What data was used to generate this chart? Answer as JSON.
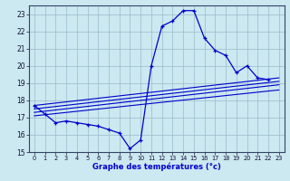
{
  "xlabel": "Graphe des températures (°c)",
  "bg_color": "#cce8f0",
  "grid_color": "#99bbcc",
  "line_color": "#0000cc",
  "xlabel_color": "#0000cc",
  "xlim": [
    -0.5,
    23.5
  ],
  "ylim": [
    15,
    23.5
  ],
  "yticks": [
    15,
    16,
    17,
    18,
    19,
    20,
    21,
    22,
    23
  ],
  "xticks": [
    0,
    1,
    2,
    3,
    4,
    5,
    6,
    7,
    8,
    9,
    10,
    11,
    12,
    13,
    14,
    15,
    16,
    17,
    18,
    19,
    20,
    21,
    22,
    23
  ],
  "main_series": {
    "x": [
      0,
      1,
      2,
      3,
      4,
      5,
      6,
      7,
      8,
      9,
      10,
      11,
      12,
      13,
      14,
      15,
      16,
      17,
      18,
      19,
      20,
      21,
      22
    ],
    "y": [
      17.7,
      17.2,
      16.7,
      16.8,
      16.7,
      16.6,
      16.5,
      16.3,
      16.1,
      15.2,
      15.7,
      20.0,
      22.3,
      22.6,
      23.2,
      23.2,
      21.6,
      20.9,
      20.6,
      19.6,
      20.0,
      19.3,
      19.2
    ]
  },
  "trend_lines": [
    {
      "x": [
        0,
        23
      ],
      "y": [
        17.7,
        19.3
      ]
    },
    {
      "x": [
        0,
        23
      ],
      "y": [
        17.5,
        19.1
      ]
    },
    {
      "x": [
        0,
        23
      ],
      "y": [
        17.3,
        18.9
      ]
    },
    {
      "x": [
        0,
        23
      ],
      "y": [
        17.1,
        18.6
      ]
    }
  ]
}
